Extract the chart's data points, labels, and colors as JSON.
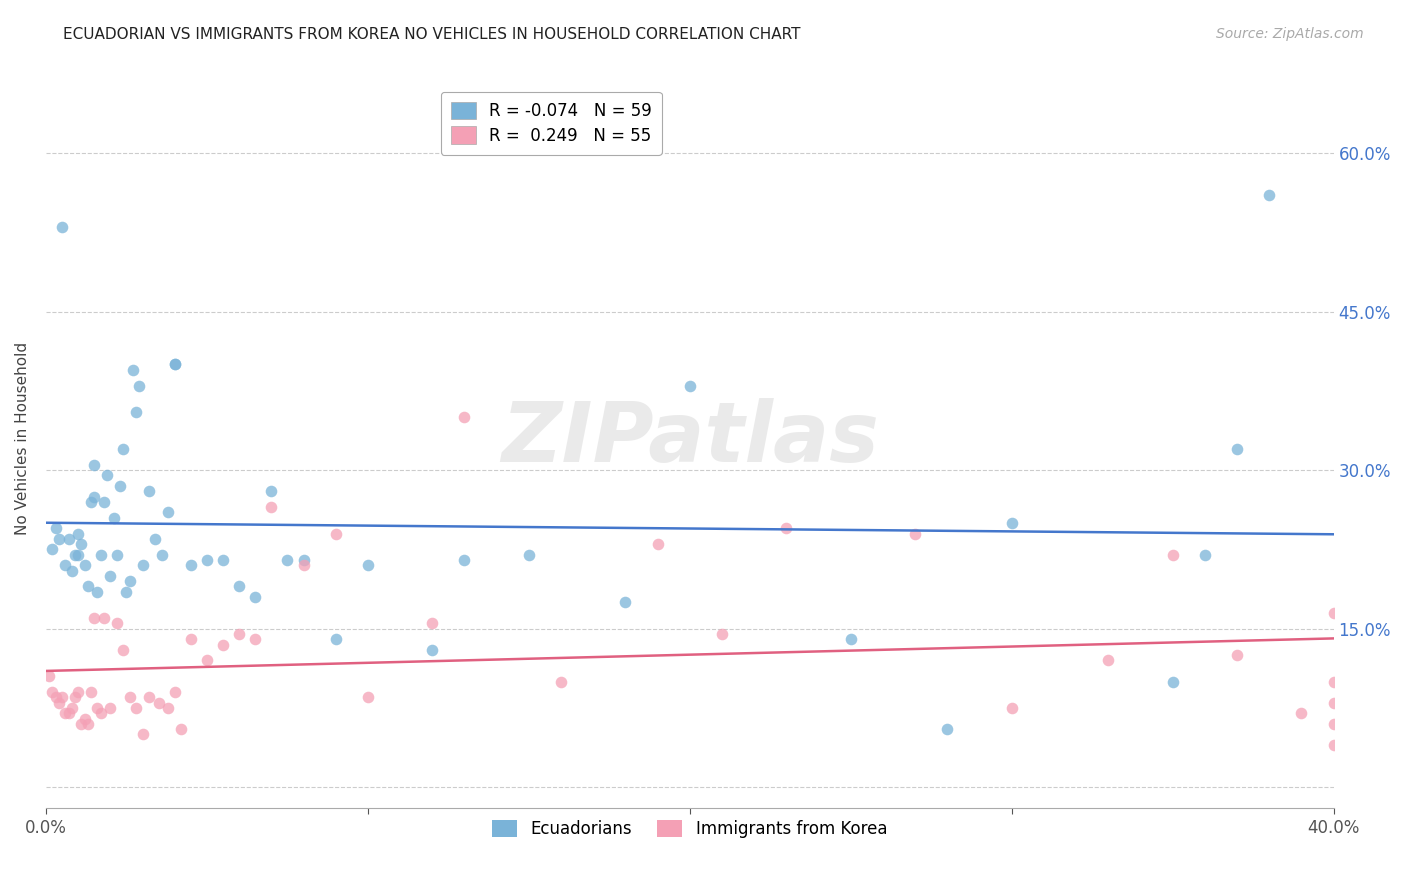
{
  "title": "ECUADORIAN VS IMMIGRANTS FROM KOREA NO VEHICLES IN HOUSEHOLD CORRELATION CHART",
  "source": "Source: ZipAtlas.com",
  "ylabel": "No Vehicles in Household",
  "xlim": [
    0.0,
    0.4
  ],
  "ylim": [
    -0.02,
    0.68
  ],
  "yticks": [
    0.0,
    0.15,
    0.3,
    0.45,
    0.6
  ],
  "ytick_labels": [
    "",
    "15.0%",
    "30.0%",
    "45.0%",
    "60.0%"
  ],
  "blue_R": -0.074,
  "blue_N": 59,
  "pink_R": 0.249,
  "pink_N": 55,
  "blue_color": "#7ab3d8",
  "pink_color": "#f4a0b5",
  "blue_line_color": "#4477cc",
  "pink_line_color": "#e06080",
  "watermark": "ZIPatlas",
  "blue_scatter_x": [
    0.002,
    0.003,
    0.004,
    0.005,
    0.006,
    0.007,
    0.008,
    0.009,
    0.01,
    0.01,
    0.011,
    0.012,
    0.013,
    0.014,
    0.015,
    0.015,
    0.016,
    0.017,
    0.018,
    0.019,
    0.02,
    0.021,
    0.022,
    0.023,
    0.024,
    0.025,
    0.026,
    0.027,
    0.028,
    0.029,
    0.03,
    0.032,
    0.034,
    0.036,
    0.038,
    0.04,
    0.04,
    0.045,
    0.05,
    0.055,
    0.06,
    0.065,
    0.07,
    0.075,
    0.08,
    0.09,
    0.1,
    0.12,
    0.13,
    0.15,
    0.18,
    0.2,
    0.25,
    0.28,
    0.3,
    0.35,
    0.36,
    0.37,
    0.38
  ],
  "blue_scatter_y": [
    0.225,
    0.245,
    0.235,
    0.53,
    0.21,
    0.235,
    0.205,
    0.22,
    0.24,
    0.22,
    0.23,
    0.21,
    0.19,
    0.27,
    0.275,
    0.305,
    0.185,
    0.22,
    0.27,
    0.295,
    0.2,
    0.255,
    0.22,
    0.285,
    0.32,
    0.185,
    0.195,
    0.395,
    0.355,
    0.38,
    0.21,
    0.28,
    0.235,
    0.22,
    0.26,
    0.4,
    0.4,
    0.21,
    0.215,
    0.215,
    0.19,
    0.18,
    0.28,
    0.215,
    0.215,
    0.14,
    0.21,
    0.13,
    0.215,
    0.22,
    0.175,
    0.38,
    0.14,
    0.055,
    0.25,
    0.1,
    0.22,
    0.32,
    0.56
  ],
  "pink_scatter_x": [
    0.001,
    0.002,
    0.003,
    0.004,
    0.005,
    0.006,
    0.007,
    0.008,
    0.009,
    0.01,
    0.011,
    0.012,
    0.013,
    0.014,
    0.015,
    0.016,
    0.017,
    0.018,
    0.02,
    0.022,
    0.024,
    0.026,
    0.028,
    0.03,
    0.032,
    0.035,
    0.038,
    0.04,
    0.042,
    0.045,
    0.05,
    0.055,
    0.06,
    0.065,
    0.07,
    0.08,
    0.09,
    0.1,
    0.12,
    0.13,
    0.16,
    0.19,
    0.21,
    0.23,
    0.27,
    0.3,
    0.33,
    0.35,
    0.37,
    0.39,
    0.4,
    0.4,
    0.4,
    0.4,
    0.4
  ],
  "pink_scatter_y": [
    0.105,
    0.09,
    0.085,
    0.08,
    0.085,
    0.07,
    0.07,
    0.075,
    0.085,
    0.09,
    0.06,
    0.065,
    0.06,
    0.09,
    0.16,
    0.075,
    0.07,
    0.16,
    0.075,
    0.155,
    0.13,
    0.085,
    0.075,
    0.05,
    0.085,
    0.08,
    0.075,
    0.09,
    0.055,
    0.14,
    0.12,
    0.135,
    0.145,
    0.14,
    0.265,
    0.21,
    0.24,
    0.085,
    0.155,
    0.35,
    0.1,
    0.23,
    0.145,
    0.245,
    0.24,
    0.075,
    0.12,
    0.22,
    0.125,
    0.07,
    0.165,
    0.1,
    0.08,
    0.06,
    0.04
  ]
}
